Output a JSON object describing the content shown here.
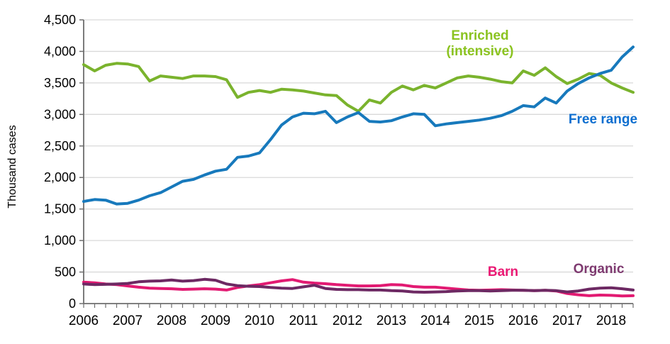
{
  "labels": {
    "enriched_line1": "Enriched",
    "enriched_line2": "(intensive)",
    "free_range": "Free range",
    "barn": "Barn",
    "organic": "Organic"
  },
  "label_colors": {
    "enriched": "#8bc320",
    "free_range": "#0d6ecf",
    "barn": "#ea1a74",
    "organic": "#7e3a70"
  },
  "chart_data": {
    "type": "line",
    "title": "",
    "xlabel": "",
    "ylabel": "Thousand cases",
    "ylim": [
      0,
      4500
    ],
    "grid": "horizontal",
    "legend_position": "inline-annotations",
    "frequency": "quarterly",
    "x_range": [
      "2006 Q1",
      "2018 Q3"
    ],
    "x_labels": [
      "2006",
      "2007",
      "2008",
      "2009",
      "2010",
      "2011",
      "2012",
      "2013",
      "2014",
      "2015",
      "2016",
      "2017",
      "2018"
    ],
    "y_ticks": [
      {
        "v": 0,
        "label": "0"
      },
      {
        "v": 500,
        "label": "500"
      },
      {
        "v": 1000,
        "label": "1,000"
      },
      {
        "v": 1500,
        "label": "1,500"
      },
      {
        "v": 2000,
        "label": "2,000"
      },
      {
        "v": 2500,
        "label": "2,500"
      },
      {
        "v": 3000,
        "label": "3,000"
      },
      {
        "v": 3500,
        "label": "3,500"
      },
      {
        "v": 4000,
        "label": "4,000"
      },
      {
        "v": 4500,
        "label": "4,500"
      }
    ],
    "colors": {
      "grid": "#d9d9d9",
      "axis": "#6e6e6e",
      "text": "#000000"
    },
    "series": [
      {
        "name": "Enriched (intensive)",
        "color": "#7ab32d",
        "values": [
          3790,
          3690,
          3780,
          3810,
          3800,
          3760,
          3530,
          3610,
          3590,
          3570,
          3610,
          3610,
          3600,
          3550,
          3270,
          3350,
          3380,
          3350,
          3400,
          3390,
          3370,
          3340,
          3310,
          3300,
          3150,
          3050,
          3230,
          3180,
          3350,
          3450,
          3390,
          3460,
          3420,
          3500,
          3580,
          3610,
          3590,
          3560,
          3520,
          3500,
          3690,
          3620,
          3740,
          3600,
          3490,
          3560,
          3650,
          3620,
          3500,
          3420,
          3350
        ]
      },
      {
        "name": "Free range",
        "color": "#1779bc",
        "values": [
          1620,
          1650,
          1640,
          1580,
          1590,
          1640,
          1710,
          1760,
          1850,
          1940,
          1970,
          2040,
          2100,
          2130,
          2320,
          2340,
          2390,
          2600,
          2830,
          2960,
          3020,
          3010,
          3050,
          2870,
          2960,
          3030,
          2890,
          2880,
          2900,
          2960,
          3010,
          3000,
          2820,
          2850,
          2870,
          2890,
          2910,
          2940,
          2980,
          3050,
          3140,
          3120,
          3260,
          3180,
          3370,
          3490,
          3580,
          3650,
          3700,
          3910,
          4070
        ]
      },
      {
        "name": "Barn",
        "color": "#e21a72",
        "values": [
          340,
          330,
          310,
          300,
          280,
          260,
          245,
          240,
          235,
          225,
          230,
          235,
          230,
          215,
          255,
          280,
          300,
          330,
          360,
          380,
          340,
          325,
          315,
          300,
          290,
          280,
          280,
          285,
          300,
          295,
          270,
          260,
          260,
          245,
          230,
          215,
          210,
          215,
          220,
          215,
          210,
          205,
          210,
          200,
          160,
          140,
          125,
          135,
          130,
          120,
          125
        ]
      },
      {
        "name": "Organic",
        "color": "#6d2963",
        "values": [
          310,
          300,
          305,
          310,
          320,
          345,
          355,
          360,
          375,
          355,
          365,
          385,
          370,
          310,
          285,
          275,
          270,
          255,
          245,
          240,
          265,
          290,
          240,
          225,
          220,
          220,
          215,
          215,
          205,
          200,
          185,
          180,
          185,
          190,
          200,
          205,
          205,
          200,
          205,
          210,
          210,
          205,
          210,
          205,
          185,
          200,
          230,
          245,
          250,
          235,
          215
        ]
      }
    ]
  }
}
